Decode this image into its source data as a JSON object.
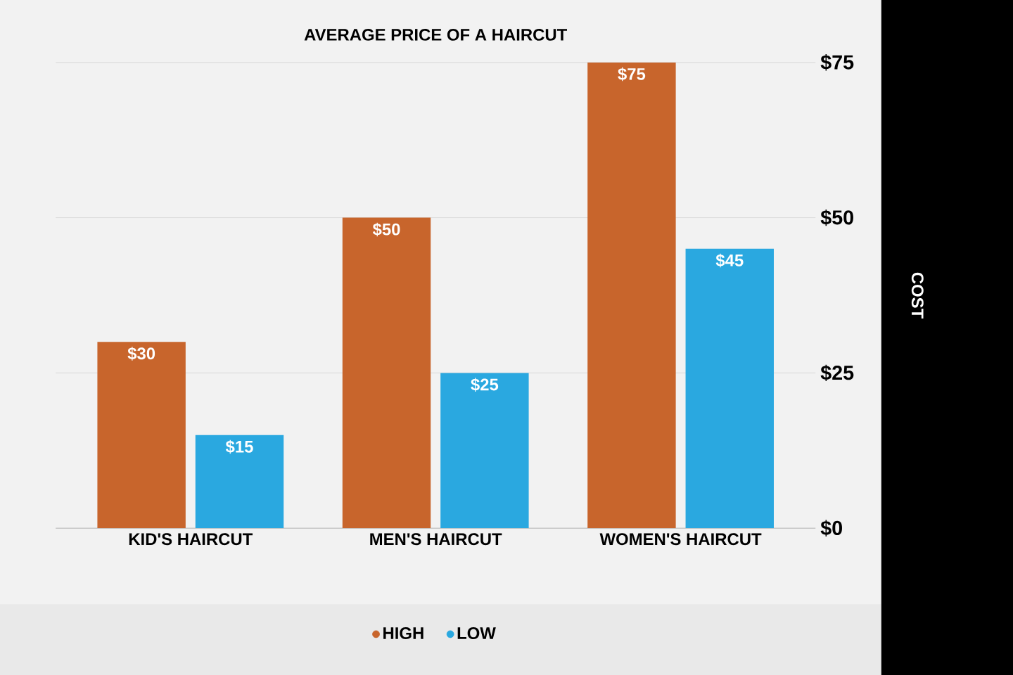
{
  "chart_data": {
    "type": "bar",
    "title": "AVERAGE PRICE OF A HAIRCUT",
    "ylabel": "COST",
    "categories": [
      "KID'S HAIRCUT",
      "MEN'S HAIRCUT",
      "WOMEN'S HAIRCUT"
    ],
    "series": [
      {
        "name": "HIGH",
        "color": "#c8652c",
        "values": [
          30,
          50,
          75
        ],
        "value_labels": [
          "$30",
          "$50",
          "$75"
        ]
      },
      {
        "name": "LOW",
        "color": "#2aa8e0",
        "values": [
          15,
          25,
          45
        ],
        "value_labels": [
          "$15",
          "$25",
          "$45"
        ]
      }
    ],
    "ylim": [
      0,
      75
    ],
    "yticks": [
      {
        "value": 0,
        "label": "$0"
      },
      {
        "value": 25,
        "label": "$25"
      },
      {
        "value": 50,
        "label": "$50"
      },
      {
        "value": 75,
        "label": "$75"
      }
    ],
    "grid": "y",
    "legend": "bottom"
  }
}
